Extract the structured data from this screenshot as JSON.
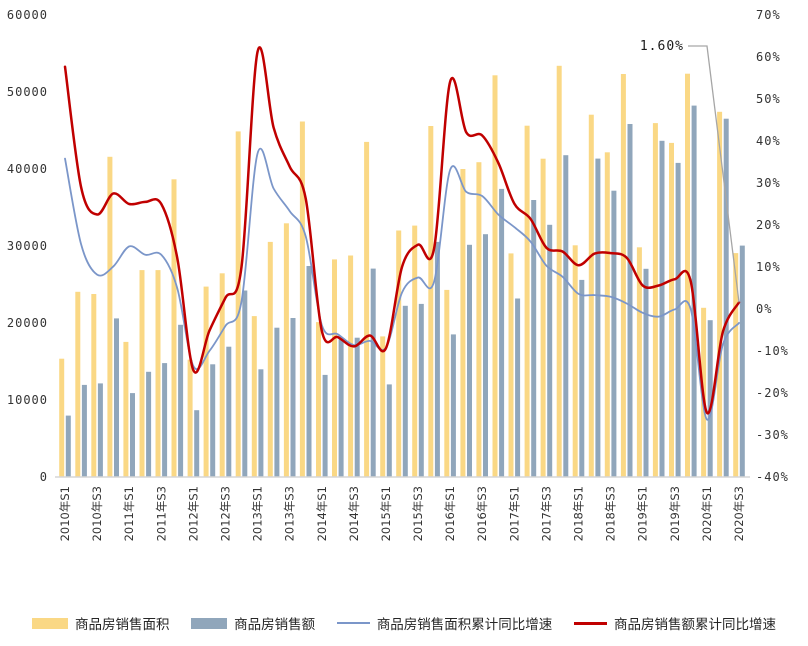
{
  "chart_data": {
    "type": "combo_bar_line",
    "categories": [
      "2010年S1",
      "2010年S2",
      "2010年S3",
      "2010年S4",
      "2011年S1",
      "2011年S2",
      "2011年S3",
      "2011年S4",
      "2012年S1",
      "2012年S2",
      "2012年S3",
      "2012年S4",
      "2013年S1",
      "2013年S2",
      "2013年S3",
      "2013年S4",
      "2014年S1",
      "2014年S2",
      "2014年S3",
      "2014年S4",
      "2015年S1",
      "2015年S2",
      "2015年S3",
      "2015年S4",
      "2016年S1",
      "2016年S2",
      "2016年S3",
      "2016年S4",
      "2017年S1",
      "2017年S2",
      "2017年S3",
      "2017年S4",
      "2018年S1",
      "2018年S2",
      "2018年S3",
      "2018年S4",
      "2019年S1",
      "2019年S2",
      "2019年S3",
      "2019年S4",
      "2020年S1",
      "2020年S2",
      "2020年S3"
    ],
    "x_tick_every": 2,
    "bar_series": [
      {
        "name": "商品房销售面积",
        "color": "#FAD885",
        "axis": "left",
        "values": [
          15361,
          24058,
          23765,
          41581,
          17545,
          26874,
          26870,
          38657,
          15239,
          24725,
          26456,
          44884,
          20898,
          30535,
          32950,
          46168,
          20111,
          28254,
          28767,
          43517,
          18254,
          32010,
          32644,
          45587,
          24299,
          40003,
          40883,
          52164,
          29035,
          45627,
          41344,
          53402,
          30088,
          47055,
          42170,
          52341,
          29829,
          45957,
          43393,
          52379,
          21978,
          47426,
          29082
        ]
      },
      {
        "name": "商品房销售额",
        "color": "#90A6BB",
        "axis": "left",
        "values": [
          7977,
          11963,
          12150,
          20600,
          10898,
          13658,
          14798,
          19765,
          8672,
          14642,
          16926,
          24216,
          13992,
          19384,
          20652,
          27400,
          13263,
          17870,
          18094,
          27065,
          12023,
          22236,
          22486,
          30536,
          18524,
          30158,
          31526,
          37419,
          23182,
          35970,
          32752,
          41797,
          25597,
          41348,
          37187,
          45841,
          27039,
          43659,
          40793,
          48234,
          20365,
          46530,
          30048
        ]
      }
    ],
    "line_series": [
      {
        "name": "商品房销售面积累计同比增速",
        "color": "#7B96C9",
        "width": 1.8,
        "axis": "right",
        "values": [
          35.8,
          15.4,
          8.2,
          10.1,
          14.9,
          12.9,
          12.9,
          4.9,
          -13.6,
          -10.0,
          -4.0,
          1.8,
          37.1,
          28.7,
          23.3,
          17.3,
          -3.8,
          -6.0,
          -8.6,
          -7.6,
          -9.2,
          3.9,
          7.5,
          6.5,
          33.1,
          27.9,
          26.9,
          22.5,
          19.5,
          16.1,
          10.3,
          7.7,
          3.6,
          3.3,
          2.9,
          1.3,
          -0.9,
          -1.8,
          -0.1,
          -0.1,
          -26.3,
          -8.4,
          -3.3
        ]
      },
      {
        "name": "商品房销售额累计同比增速",
        "color": "#C00000",
        "width": 2.5,
        "axis": "right",
        "values": [
          57.7,
          29.0,
          22.5,
          27.5,
          25.0,
          25.5,
          25.0,
          12.1,
          -14.6,
          -5.2,
          2.7,
          10.0,
          61.3,
          43.2,
          33.9,
          26.3,
          -5.2,
          -6.7,
          -8.9,
          -6.3,
          -9.3,
          10.0,
          15.3,
          14.4,
          54.1,
          42.1,
          41.3,
          34.8,
          25.1,
          21.5,
          14.6,
          13.7,
          10.4,
          13.2,
          13.3,
          12.2,
          5.6,
          5.6,
          7.1,
          6.5,
          -24.7,
          -5.4,
          1.6
        ]
      }
    ],
    "left_axis": {
      "min": 0,
      "max": 60000,
      "step": 10000,
      "tick_labels": [
        "60000",
        "50000",
        "40000",
        "30000",
        "20000",
        "10000",
        "0"
      ]
    },
    "right_axis": {
      "min": -40,
      "max": 70,
      "step": 10,
      "tick_labels": [
        "70%",
        "60%",
        "50%",
        "40%",
        "30%",
        "20%",
        "10%",
        "0%",
        "-10%",
        "-20%",
        "-30%",
        "-40%"
      ]
    },
    "annotation": {
      "text": "1.60%",
      "target_category": "2020年S3",
      "target_series": "商品房销售额累计同比增速",
      "target_value": 1.6
    },
    "colors": {
      "background": "#FFFFFF",
      "baseline": "#D6D6D6",
      "leader_line": "#A6A6A6",
      "axis_text": "#333333"
    },
    "legend_position": "bottom"
  }
}
